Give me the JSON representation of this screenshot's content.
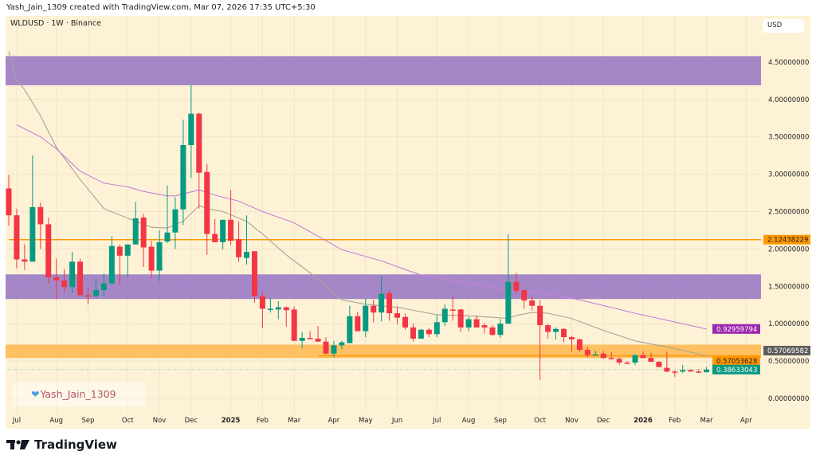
{
  "header": {
    "attribution": "Yash_Jain_1309 created with TradingView.com, Mar 07, 2026 17:35 UTC+5:30"
  },
  "chart_header": {
    "symbol": "WLDUSD · 1W · Binance",
    "currency": "USD"
  },
  "watermark": {
    "text": "Yash_Jain_1309",
    "icon": "blue-heart-icon"
  },
  "logo": {
    "text": "TradingView"
  },
  "colors": {
    "background": "#fef2d6",
    "up": "#089981",
    "down": "#f23645",
    "zone_purple": "#9b7bc7",
    "zone_orange": "#ffb74d",
    "line_orange": "#ff9800",
    "ma_gray": "#a8a39a",
    "ma_purple": "#c77fd6"
  },
  "chart_data": {
    "type": "candlestick",
    "symbol": "WLDUSD",
    "interval": "1W",
    "exchange": "Binance",
    "ylim": [
      -0.2,
      4.85
    ],
    "y_ticks": [
      "4.50000000",
      "4.00000000",
      "3.50000000",
      "3.00000000",
      "2.50000000",
      "2.00000000",
      "1.50000000",
      "1.00000000",
      "0.50000000",
      "0.00000000"
    ],
    "x_ticks": [
      {
        "label": "Jul",
        "date": "2024-07-01"
      },
      {
        "label": "Aug",
        "date": "2024-08-05"
      },
      {
        "label": "Sep",
        "date": "2024-09-02"
      },
      {
        "label": "Oct",
        "date": "2024-10-07"
      },
      {
        "label": "Nov",
        "date": "2024-11-04"
      },
      {
        "label": "Dec",
        "date": "2024-12-02"
      },
      {
        "label": "2025",
        "date": "2025-01-06",
        "bold": true
      },
      {
        "label": "Feb",
        "date": "2025-02-03"
      },
      {
        "label": "Mar",
        "date": "2025-03-03"
      },
      {
        "label": "Apr",
        "date": "2025-04-07"
      },
      {
        "label": "May",
        "date": "2025-05-05"
      },
      {
        "label": "Jun",
        "date": "2025-06-02"
      },
      {
        "label": "Jul",
        "date": "2025-07-07"
      },
      {
        "label": "Aug",
        "date": "2025-08-04"
      },
      {
        "label": "Sep",
        "date": "2025-09-01"
      },
      {
        "label": "Oct",
        "date": "2025-10-06"
      },
      {
        "label": "Nov",
        "date": "2025-11-03"
      },
      {
        "label": "Dec",
        "date": "2025-12-01"
      },
      {
        "label": "2026",
        "date": "2026-01-05",
        "bold": true
      },
      {
        "label": "Feb",
        "date": "2026-02-02"
      },
      {
        "label": "Mar",
        "date": "2026-03-02"
      },
      {
        "label": "Apr",
        "date": "2026-04-06"
      }
    ],
    "candles": [
      [
        "2024-06-24",
        2.81,
        2.99,
        2.31,
        2.45
      ],
      [
        "2024-07-01",
        2.45,
        2.54,
        1.74,
        1.86
      ],
      [
        "2024-07-08",
        1.86,
        2.06,
        1.72,
        1.83
      ],
      [
        "2024-07-15",
        1.83,
        3.25,
        1.83,
        2.56
      ],
      [
        "2024-07-22",
        2.56,
        2.62,
        2.0,
        2.33
      ],
      [
        "2024-07-29",
        2.33,
        2.42,
        1.54,
        1.62
      ],
      [
        "2024-08-05",
        1.62,
        1.87,
        1.33,
        1.58
      ],
      [
        "2024-08-12",
        1.58,
        1.73,
        1.42,
        1.49
      ],
      [
        "2024-08-19",
        1.49,
        1.96,
        1.41,
        1.83
      ],
      [
        "2024-08-26",
        1.83,
        1.87,
        1.38,
        1.38
      ],
      [
        "2024-09-02",
        1.38,
        1.49,
        1.26,
        1.37
      ],
      [
        "2024-09-09",
        1.37,
        1.6,
        1.34,
        1.45
      ],
      [
        "2024-09-16",
        1.45,
        1.67,
        1.37,
        1.54
      ],
      [
        "2024-09-23",
        1.54,
        2.17,
        1.51,
        2.04
      ],
      [
        "2024-09-30",
        2.03,
        2.06,
        1.52,
        1.91
      ],
      [
        "2024-10-07",
        1.91,
        2.06,
        1.62,
        2.06
      ],
      [
        "2024-10-14",
        2.06,
        2.63,
        2.06,
        2.41
      ],
      [
        "2024-10-21",
        2.42,
        2.47,
        1.76,
        2.02
      ],
      [
        "2024-10-28",
        2.03,
        2.11,
        1.61,
        1.71
      ],
      [
        "2024-11-04",
        1.71,
        2.25,
        1.57,
        2.09
      ],
      [
        "2024-11-11",
        2.1,
        2.85,
        2.08,
        2.22
      ],
      [
        "2024-11-18",
        2.22,
        2.69,
        2.0,
        2.53
      ],
      [
        "2024-11-25",
        2.53,
        3.73,
        2.32,
        3.39
      ],
      [
        "2024-12-02",
        3.39,
        4.19,
        2.95,
        3.81
      ],
      [
        "2024-12-09",
        3.81,
        3.82,
        2.54,
        3.02
      ],
      [
        "2024-12-16",
        3.03,
        3.14,
        1.92,
        2.2
      ],
      [
        "2024-12-23",
        2.2,
        2.4,
        2.09,
        2.09
      ],
      [
        "2024-12-30",
        2.09,
        2.39,
        1.99,
        2.39
      ],
      [
        "2025-01-06",
        2.39,
        2.79,
        2.05,
        2.11
      ],
      [
        "2025-01-13",
        2.13,
        2.37,
        1.83,
        1.89
      ],
      [
        "2025-01-20",
        1.88,
        2.45,
        1.79,
        1.96
      ],
      [
        "2025-01-27",
        1.97,
        1.97,
        1.28,
        1.37
      ],
      [
        "2025-02-03",
        1.37,
        1.43,
        0.94,
        1.2
      ],
      [
        "2025-02-10",
        1.2,
        1.35,
        1.15,
        1.2
      ],
      [
        "2025-02-17",
        1.19,
        1.3,
        1.06,
        1.22
      ],
      [
        "2025-02-24",
        1.22,
        1.23,
        0.96,
        1.18
      ],
      [
        "2025-03-03",
        1.19,
        1.23,
        0.77,
        0.77
      ],
      [
        "2025-03-10",
        0.77,
        0.89,
        0.67,
        0.81
      ],
      [
        "2025-03-17",
        0.81,
        0.9,
        0.79,
        0.8
      ],
      [
        "2025-03-24",
        0.8,
        0.97,
        0.76,
        0.76
      ],
      [
        "2025-03-31",
        0.76,
        0.82,
        0.59,
        0.6
      ],
      [
        "2025-04-07",
        0.6,
        0.77,
        0.55,
        0.71
      ],
      [
        "2025-04-14",
        0.71,
        0.77,
        0.66,
        0.75
      ],
      [
        "2025-04-21",
        0.74,
        1.24,
        0.74,
        1.1
      ],
      [
        "2025-04-28",
        1.1,
        1.16,
        0.9,
        0.9
      ],
      [
        "2025-05-05",
        0.9,
        1.34,
        0.82,
        1.24
      ],
      [
        "2025-05-12",
        1.24,
        1.32,
        1.02,
        1.15
      ],
      [
        "2025-05-19",
        1.15,
        1.63,
        1.03,
        1.4
      ],
      [
        "2025-05-26",
        1.41,
        1.45,
        1.04,
        1.14
      ],
      [
        "2025-06-02",
        1.14,
        1.23,
        0.99,
        1.08
      ],
      [
        "2025-06-09",
        1.09,
        1.14,
        0.92,
        0.95
      ],
      [
        "2025-06-16",
        0.95,
        1.0,
        0.76,
        0.8
      ],
      [
        "2025-06-23",
        0.8,
        0.93,
        0.8,
        0.92
      ],
      [
        "2025-06-30",
        0.92,
        0.94,
        0.82,
        0.86
      ],
      [
        "2025-07-07",
        0.86,
        1.12,
        0.82,
        1.02
      ],
      [
        "2025-07-14",
        1.02,
        1.26,
        0.97,
        1.2
      ],
      [
        "2025-07-21",
        1.19,
        1.38,
        1.04,
        1.18
      ],
      [
        "2025-07-28",
        1.19,
        1.2,
        0.89,
        0.95
      ],
      [
        "2025-08-04",
        0.95,
        1.09,
        0.9,
        1.06
      ],
      [
        "2025-08-11",
        1.06,
        1.11,
        0.95,
        0.95
      ],
      [
        "2025-08-18",
        0.98,
        1.01,
        0.87,
        0.95
      ],
      [
        "2025-08-25",
        0.95,
        0.98,
        0.84,
        0.85
      ],
      [
        "2025-09-01",
        0.85,
        1.06,
        0.81,
        1.0
      ],
      [
        "2025-09-08",
        1.0,
        2.2,
        1.0,
        1.56
      ],
      [
        "2025-09-15",
        1.56,
        1.68,
        1.4,
        1.44
      ],
      [
        "2025-09-22",
        1.45,
        1.45,
        1.2,
        1.31
      ],
      [
        "2025-09-29",
        1.31,
        1.38,
        1.18,
        1.24
      ],
      [
        "2025-10-06",
        1.24,
        1.31,
        0.25,
        0.98
      ],
      [
        "2025-10-13",
        0.98,
        1.0,
        0.8,
        0.89
      ],
      [
        "2025-10-20",
        0.89,
        0.95,
        0.79,
        0.93
      ],
      [
        "2025-10-27",
        0.93,
        0.94,
        0.75,
        0.82
      ],
      [
        "2025-11-03",
        0.82,
        0.84,
        0.63,
        0.79
      ],
      [
        "2025-11-10",
        0.79,
        0.8,
        0.62,
        0.65
      ],
      [
        "2025-11-17",
        0.65,
        0.69,
        0.55,
        0.58
      ],
      [
        "2025-11-24",
        0.58,
        0.64,
        0.58,
        0.59
      ],
      [
        "2025-12-01",
        0.6,
        0.64,
        0.54,
        0.54
      ],
      [
        "2025-12-08",
        0.54,
        0.62,
        0.53,
        0.53
      ],
      [
        "2025-12-15",
        0.53,
        0.55,
        0.45,
        0.48
      ],
      [
        "2025-12-22",
        0.48,
        0.5,
        0.46,
        0.47
      ],
      [
        "2025-12-29",
        0.48,
        0.59,
        0.45,
        0.58
      ],
      [
        "2026-01-05",
        0.58,
        0.63,
        0.54,
        0.54
      ],
      [
        "2026-01-12",
        0.54,
        0.61,
        0.49,
        0.49
      ],
      [
        "2026-01-19",
        0.49,
        0.5,
        0.42,
        0.42
      ],
      [
        "2026-01-26",
        0.41,
        0.63,
        0.35,
        0.36
      ],
      [
        "2026-02-02",
        0.36,
        0.38,
        0.29,
        0.35
      ],
      [
        "2026-02-09",
        0.36,
        0.45,
        0.34,
        0.38
      ],
      [
        "2026-02-16",
        0.38,
        0.39,
        0.36,
        0.36
      ],
      [
        "2026-02-23",
        0.36,
        0.39,
        0.34,
        0.35
      ],
      [
        "2026-03-02",
        0.35,
        0.42,
        0.35,
        0.38633043
      ]
    ],
    "candle_fields": [
      "date",
      "open",
      "high",
      "low",
      "close"
    ],
    "moving_averages": [
      {
        "color": "#a8a39a",
        "last_value": "0.57069582",
        "points": [
          [
            "2024-06-24",
            4.64
          ],
          [
            "2024-07-01",
            4.26
          ],
          [
            "2024-07-08",
            4.13
          ],
          [
            "2024-07-22",
            3.78
          ],
          [
            "2024-08-05",
            3.36
          ],
          [
            "2024-08-26",
            2.93
          ],
          [
            "2024-09-16",
            2.54
          ],
          [
            "2024-10-07",
            2.41
          ],
          [
            "2024-10-28",
            2.29
          ],
          [
            "2024-11-11",
            2.28
          ],
          [
            "2024-11-25",
            2.37
          ],
          [
            "2024-12-09",
            2.58
          ],
          [
            "2024-12-16",
            2.54
          ],
          [
            "2024-12-30",
            2.5
          ],
          [
            "2025-01-20",
            2.37
          ],
          [
            "2025-02-03",
            2.2
          ],
          [
            "2025-02-24",
            1.92
          ],
          [
            "2025-03-24",
            1.6
          ],
          [
            "2025-04-14",
            1.32
          ],
          [
            "2025-05-05",
            1.26
          ],
          [
            "2025-06-02",
            1.22
          ],
          [
            "2025-07-07",
            1.12
          ],
          [
            "2025-08-11",
            1.1
          ],
          [
            "2025-09-08",
            1.07
          ],
          [
            "2025-09-15",
            1.11
          ],
          [
            "2025-09-29",
            1.15
          ],
          [
            "2025-10-13",
            1.14
          ],
          [
            "2025-11-03",
            1.07
          ],
          [
            "2025-12-01",
            0.91
          ],
          [
            "2025-12-29",
            0.77
          ],
          [
            "2026-01-26",
            0.69
          ],
          [
            "2026-03-02",
            0.57069582
          ]
        ]
      },
      {
        "color": "#c77fd6",
        "last_value": "0.92959794",
        "points": [
          [
            "2024-07-01",
            3.66
          ],
          [
            "2024-07-22",
            3.5
          ],
          [
            "2024-08-05",
            3.34
          ],
          [
            "2024-08-26",
            3.04
          ],
          [
            "2024-09-16",
            2.88
          ],
          [
            "2024-10-07",
            2.83
          ],
          [
            "2024-10-21",
            2.77
          ],
          [
            "2024-11-11",
            2.71
          ],
          [
            "2024-11-18",
            2.71
          ],
          [
            "2024-12-09",
            2.79
          ],
          [
            "2024-12-23",
            2.72
          ],
          [
            "2025-01-13",
            2.64
          ],
          [
            "2025-02-03",
            2.5
          ],
          [
            "2025-03-03",
            2.35
          ],
          [
            "2025-04-14",
            1.99
          ],
          [
            "2025-05-19",
            1.84
          ],
          [
            "2025-06-23",
            1.65
          ],
          [
            "2025-09-01",
            1.47
          ],
          [
            "2025-10-06",
            1.41
          ],
          [
            "2025-11-10",
            1.32
          ],
          [
            "2025-12-29",
            1.14
          ],
          [
            "2026-03-02",
            0.92959794
          ]
        ]
      }
    ],
    "zones": [
      {
        "color": "#9b7bc7",
        "from": 4.19,
        "to": 4.58
      },
      {
        "color": "#9b7bc7",
        "from": 1.33,
        "to": 1.66
      },
      {
        "color": "#ffb74d",
        "from": 0.54,
        "to": 0.72
      }
    ],
    "horizontal_lines": [
      {
        "value": 2.12438229,
        "label": "2.12438229",
        "color": "#ff9800",
        "start": "2024-06-24"
      },
      {
        "value": 0.57053628,
        "label": "0.57053628",
        "color": "#ff9800",
        "start": "2025-03-24"
      }
    ],
    "price_labels": [
      {
        "label": "0.92959794",
        "value": 0.92959794,
        "color": "#9c27b0"
      },
      {
        "label": "0.57069582",
        "value": 0.57069582,
        "color": "#5d5d5d",
        "offset": -1
      },
      {
        "label": "0.57053628",
        "value": 0.57053628,
        "color": "#ff9800",
        "offset": 1
      },
      {
        "label": "0.38633043",
        "value": 0.38633043,
        "color": "#089981"
      }
    ],
    "last_price": 0.38633043
  }
}
